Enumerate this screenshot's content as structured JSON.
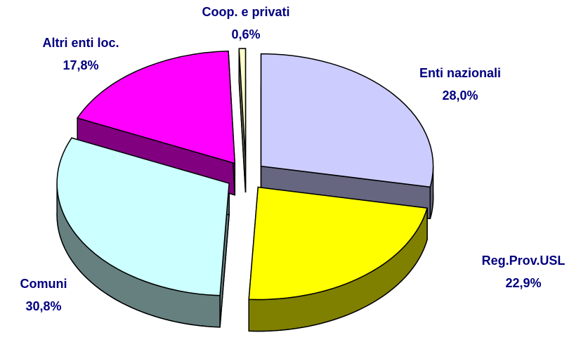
{
  "chart_data": {
    "type": "pie",
    "categories": [
      "Enti nazionali",
      "Reg.Prov.USL",
      "Comuni",
      "Altri enti loc.",
      "Coop. e privati"
    ],
    "values": [
      28.0,
      22.9,
      30.8,
      17.8,
      0.6
    ],
    "value_labels": [
      "28,0%",
      "22,9%",
      "30,8%",
      "17,8%",
      "0,6%"
    ],
    "colors": [
      "#ccccff",
      "#ffff00",
      "#ccffff",
      "#ff00ff",
      "#ffffcc"
    ]
  }
}
